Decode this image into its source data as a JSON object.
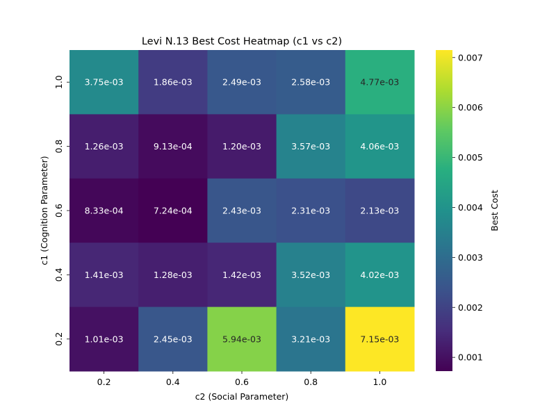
{
  "chart_data": {
    "type": "heatmap",
    "title": "Levi N.13 Best Cost Heatmap (c1 vs c2)",
    "xlabel": "c2 (Social Parameter)",
    "ylabel": "c1 (Cognition Parameter)",
    "x": [
      "0.2",
      "0.4",
      "0.6",
      "0.8",
      "1.0"
    ],
    "y": [
      "1.0",
      "0.8",
      "0.6",
      "0.4",
      "0.2"
    ],
    "values": [
      [
        0.00375,
        0.00186,
        0.00249,
        0.00258,
        0.00477
      ],
      [
        0.00126,
        0.000913,
        0.0012,
        0.00357,
        0.00406
      ],
      [
        0.000833,
        0.000724,
        0.00243,
        0.00231,
        0.00213
      ],
      [
        0.00141,
        0.00128,
        0.00142,
        0.00352,
        0.00402
      ],
      [
        0.00101,
        0.00245,
        0.00594,
        0.00321,
        0.00715
      ]
    ],
    "cell_labels": [
      [
        "3.75e-03",
        "1.86e-03",
        "2.49e-03",
        "2.58e-03",
        "4.77e-03"
      ],
      [
        "1.26e-03",
        "9.13e-04",
        "1.20e-03",
        "3.57e-03",
        "4.06e-03"
      ],
      [
        "8.33e-04",
        "7.24e-04",
        "2.43e-03",
        "2.31e-03",
        "2.13e-03"
      ],
      [
        "1.41e-03",
        "1.28e-03",
        "1.42e-03",
        "3.52e-03",
        "4.02e-03"
      ],
      [
        "1.01e-03",
        "2.45e-03",
        "5.94e-03",
        "3.21e-03",
        "7.15e-03"
      ]
    ],
    "colormap": "viridis",
    "colorbar": {
      "label": "Best Cost",
      "min": 0.000724,
      "max": 0.00715,
      "ticks": [
        0.001,
        0.002,
        0.003,
        0.004,
        0.005,
        0.006,
        0.007
      ],
      "tick_labels": [
        "0.001",
        "0.002",
        "0.003",
        "0.004",
        "0.005",
        "0.006",
        "0.007"
      ]
    },
    "grid": false
  }
}
